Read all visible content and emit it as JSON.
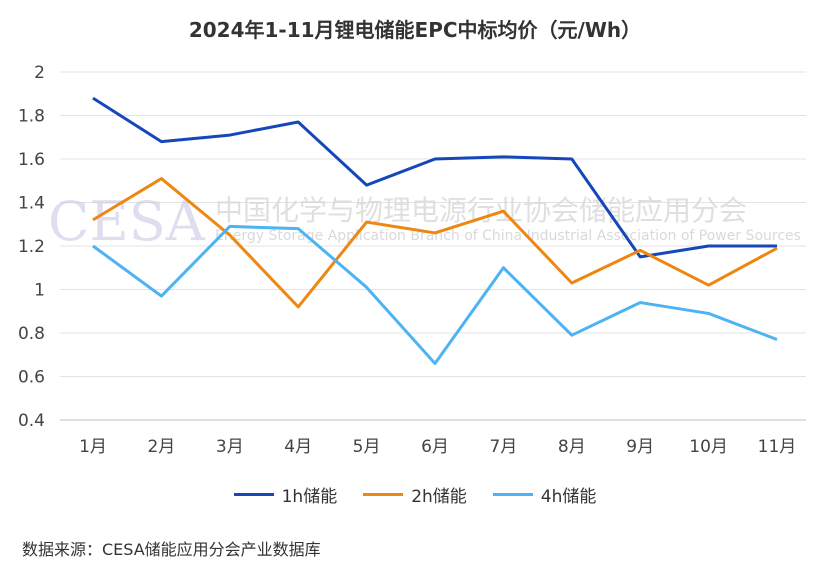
{
  "chart_data": {
    "type": "line",
    "title": "2024年1-11月锂电储能EPC中标均价（元/Wh）",
    "categories": [
      "1月",
      "2月",
      "3月",
      "4月",
      "5月",
      "6月",
      "7月",
      "8月",
      "9月",
      "10月",
      "11月"
    ],
    "series": [
      {
        "name": "1h储能",
        "color": "#1547b8",
        "values": [
          1.88,
          1.68,
          1.71,
          1.77,
          1.48,
          1.6,
          1.61,
          1.6,
          1.15,
          1.2,
          1.2
        ]
      },
      {
        "name": "2h储能",
        "color": "#ee8712",
        "values": [
          1.32,
          1.51,
          1.25,
          0.92,
          1.31,
          1.26,
          1.36,
          1.03,
          1.18,
          1.02,
          1.19
        ]
      },
      {
        "name": "4h储能",
        "color": "#4db3f2",
        "values": [
          1.2,
          0.97,
          1.29,
          1.28,
          1.01,
          0.66,
          1.1,
          0.79,
          0.94,
          0.89,
          0.77
        ]
      }
    ],
    "ylim": [
      0.4,
      2
    ],
    "yticks": [
      "0.4",
      "0.6",
      "0.8",
      "1",
      "1.2",
      "1.4",
      "1.6",
      "1.8",
      "2"
    ],
    "grid": true,
    "legend_position": "bottom"
  },
  "watermark": {
    "logo": "CESA",
    "cn": "中国化学与物理电源行业协会储能应用分会",
    "en": "Energy Storage Application Branch of China Industrial Association of Power Sources"
  },
  "source": "数据来源：CESA储能应用分会产业数据库"
}
